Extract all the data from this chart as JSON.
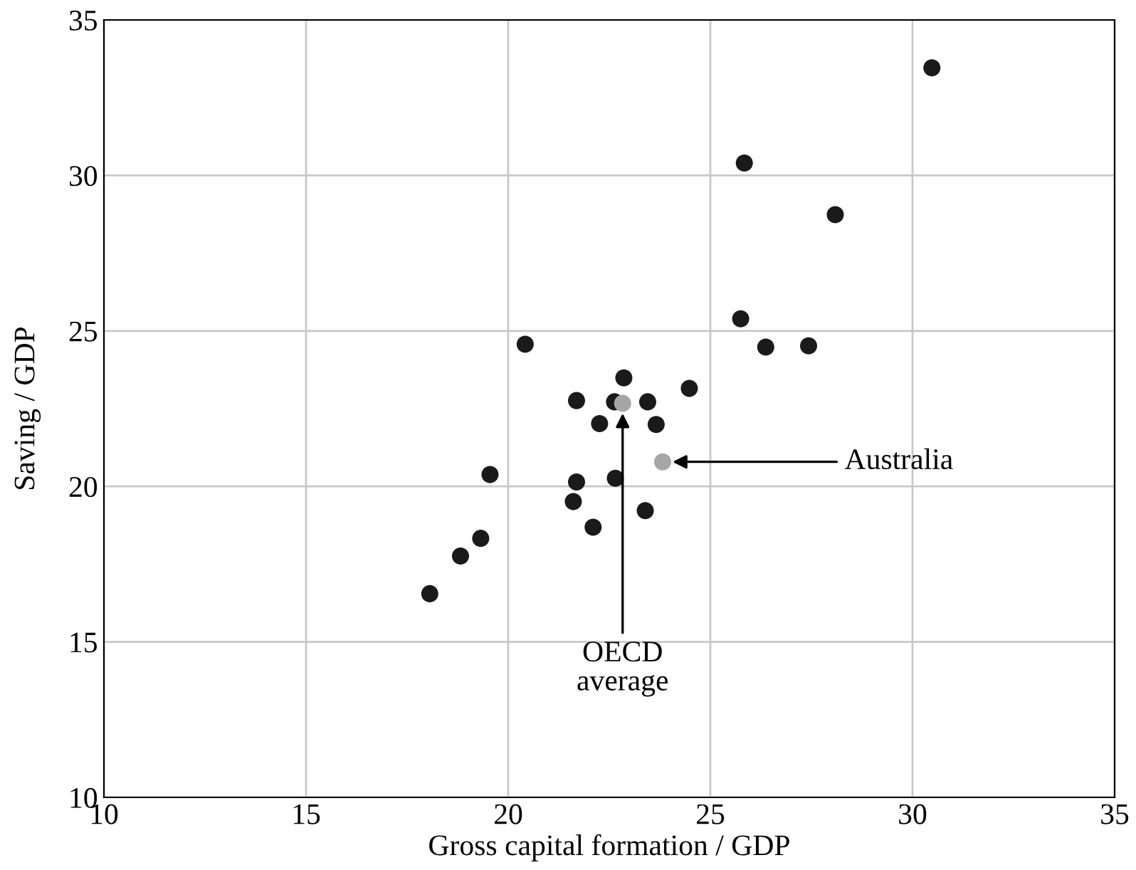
{
  "chart_data": {
    "type": "scatter",
    "xlabel": "Gross capital formation / GDP",
    "ylabel": "Saving / GDP",
    "xlim": [
      10,
      35
    ],
    "ylim": [
      10,
      35
    ],
    "xticks": [
      10,
      15,
      20,
      25,
      30,
      35
    ],
    "yticks": [
      10,
      15,
      20,
      25,
      30,
      35
    ],
    "grid": true,
    "marker": "circle",
    "series": [
      {
        "color": "#1a1a1a",
        "x": [
          18.06,
          18.82,
          19.32,
          19.55,
          20.42,
          21.69,
          22.26,
          22.63,
          22.86,
          23.45,
          23.66,
          24.48,
          21.69,
          21.61,
          22.65,
          22.1,
          23.39,
          25.75,
          25.84,
          26.37,
          27.43,
          28.09,
          30.48
        ],
        "values": [
          16.55,
          17.76,
          18.33,
          20.38,
          24.57,
          22.76,
          22.02,
          22.72,
          23.49,
          22.72,
          21.99,
          23.15,
          20.14,
          19.51,
          20.26,
          18.69,
          19.22,
          25.39,
          30.4,
          24.48,
          24.52,
          28.74,
          33.46
        ]
      },
      {
        "color": "#a6a6a6",
        "x": [
          22.83,
          23.82
        ],
        "values": [
          22.67,
          20.79
        ]
      }
    ],
    "annotations": [
      {
        "text": "OECD\naverage",
        "x": 22.83,
        "y": 22.67
      },
      {
        "text": "Australia",
        "x": 23.82,
        "y": 20.79
      }
    ]
  }
}
